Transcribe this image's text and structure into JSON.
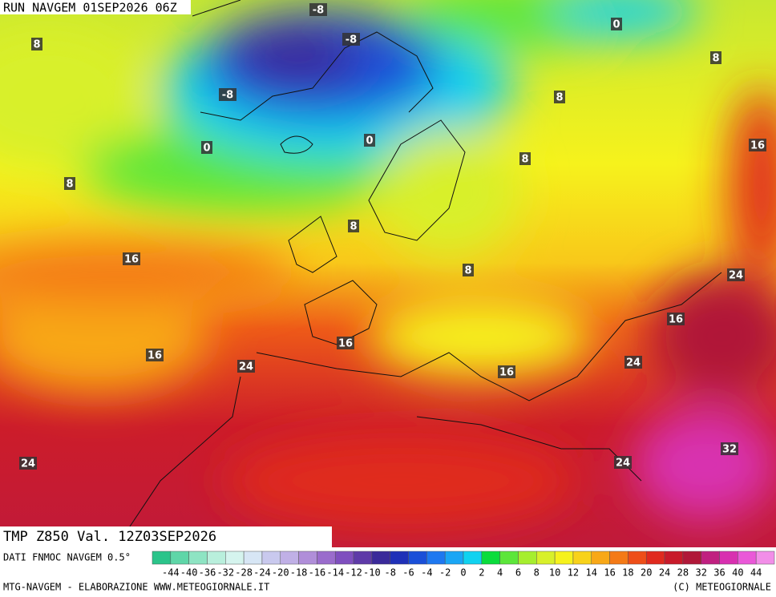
{
  "header": {
    "run": "RUN NAVGEM 01SEP2026 06Z",
    "field": "TMP  Z850  Val. 12Z03SEP2026"
  },
  "map": {
    "labels": [
      -8,
      -8,
      -8,
      0,
      8,
      8,
      8,
      0,
      0,
      16,
      8,
      8,
      8,
      16,
      8,
      24,
      16,
      16,
      16,
      24,
      24,
      16,
      32,
      24,
      24
    ]
  },
  "colorbar": {
    "source": "DATI FNMOC NAVGEM 0.5°",
    "labels": [
      -44,
      -40,
      -36,
      -32,
      -28,
      -24,
      -20,
      -18,
      -16,
      -14,
      -12,
      -10,
      -8,
      -6,
      -4,
      -2,
      0,
      2,
      4,
      6,
      8,
      10,
      12,
      14,
      16,
      18,
      20,
      24,
      28,
      32,
      36,
      40,
      44
    ],
    "colors": [
      "#2bc48a",
      "#5fd6a8",
      "#8ee4c3",
      "#b9efdc",
      "#d5f4ee",
      "#d7e6f5",
      "#c9c9ee",
      "#c0b0e6",
      "#b08ed9",
      "#9a6ccc",
      "#7f4fbf",
      "#5e3aa8",
      "#3a2a9a",
      "#1f30b8",
      "#1a4fd8",
      "#1e78f0",
      "#1aa6f5",
      "#10d2f0",
      "#0adc3c",
      "#5ce63a",
      "#a6ee2e",
      "#d8f02a",
      "#f6f21c",
      "#f8d21a",
      "#f8a818",
      "#f47a16",
      "#ee4e18",
      "#e02a1e",
      "#c81a2a",
      "#b01838",
      "#c02080",
      "#d830b0",
      "#ea58d8",
      "#f28ee8"
    ]
  },
  "footer": {
    "left": "MTG-NAVGEM - ELABORAZIONE WWW.METEOGIORNALE.IT",
    "right": "(C) METEOGIORNALE"
  }
}
